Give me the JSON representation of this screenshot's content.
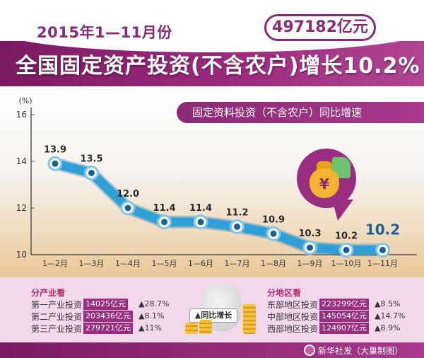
{
  "header": {
    "subtitle": "2015年1—11月份",
    "amount": "497182亿元",
    "title": "全国固定资产投资(不含农户)增长10.2%"
  },
  "chart_data": {
    "type": "line",
    "title": "固定资料投资（不含农户）同比增速",
    "ylabel": "(%)",
    "ylim": [
      10,
      16
    ],
    "yticks": [
      "10",
      "12",
      "14",
      "16"
    ],
    "categories": [
      "1—2月",
      "1—3月",
      "1—4月",
      "1—5月",
      "1—6月",
      "1—7月",
      "1—8月",
      "1—9月",
      "1—10月",
      "1—11月"
    ],
    "values": [
      13.9,
      13.5,
      12.0,
      11.4,
      11.4,
      11.2,
      10.9,
      10.3,
      10.2,
      10.2
    ],
    "labels": [
      "13.9",
      "13.5",
      "12.0",
      "11.4",
      "11.4",
      "11.2",
      "10.9",
      "10.3",
      "10.2",
      "10.2"
    ],
    "line_color": "#2f9fd8",
    "grid": false
  },
  "industry": {
    "title": "分产业看",
    "rows": [
      {
        "label": "第一产业投资",
        "value": "14025亿元",
        "growth": "▲28.7%"
      },
      {
        "label": "第二产业投资",
        "value": "203436亿元",
        "growth": "▲8.1%"
      },
      {
        "label": "第三产业投资",
        "value": "279721亿元",
        "growth": "▲11%"
      }
    ]
  },
  "region": {
    "title": "分地区看",
    "rows": [
      {
        "label": "东部地区投资",
        "value": "223299亿元",
        "growth": "▲8.5%"
      },
      {
        "label": "中部地区投资",
        "value": "145054亿元",
        "growth": "▲14.7%"
      },
      {
        "label": "西部地区投资",
        "value": "124907亿元",
        "growth": "▲8.9%"
      }
    ]
  },
  "center_label": "▲同比增长",
  "icon_yuan": "¥",
  "footer": {
    "credit": "新华社发（大巢制图）"
  },
  "colors": {
    "brand": "#8b2a74",
    "accent": "#2f9fd8",
    "value_box": "#9b2d80"
  }
}
